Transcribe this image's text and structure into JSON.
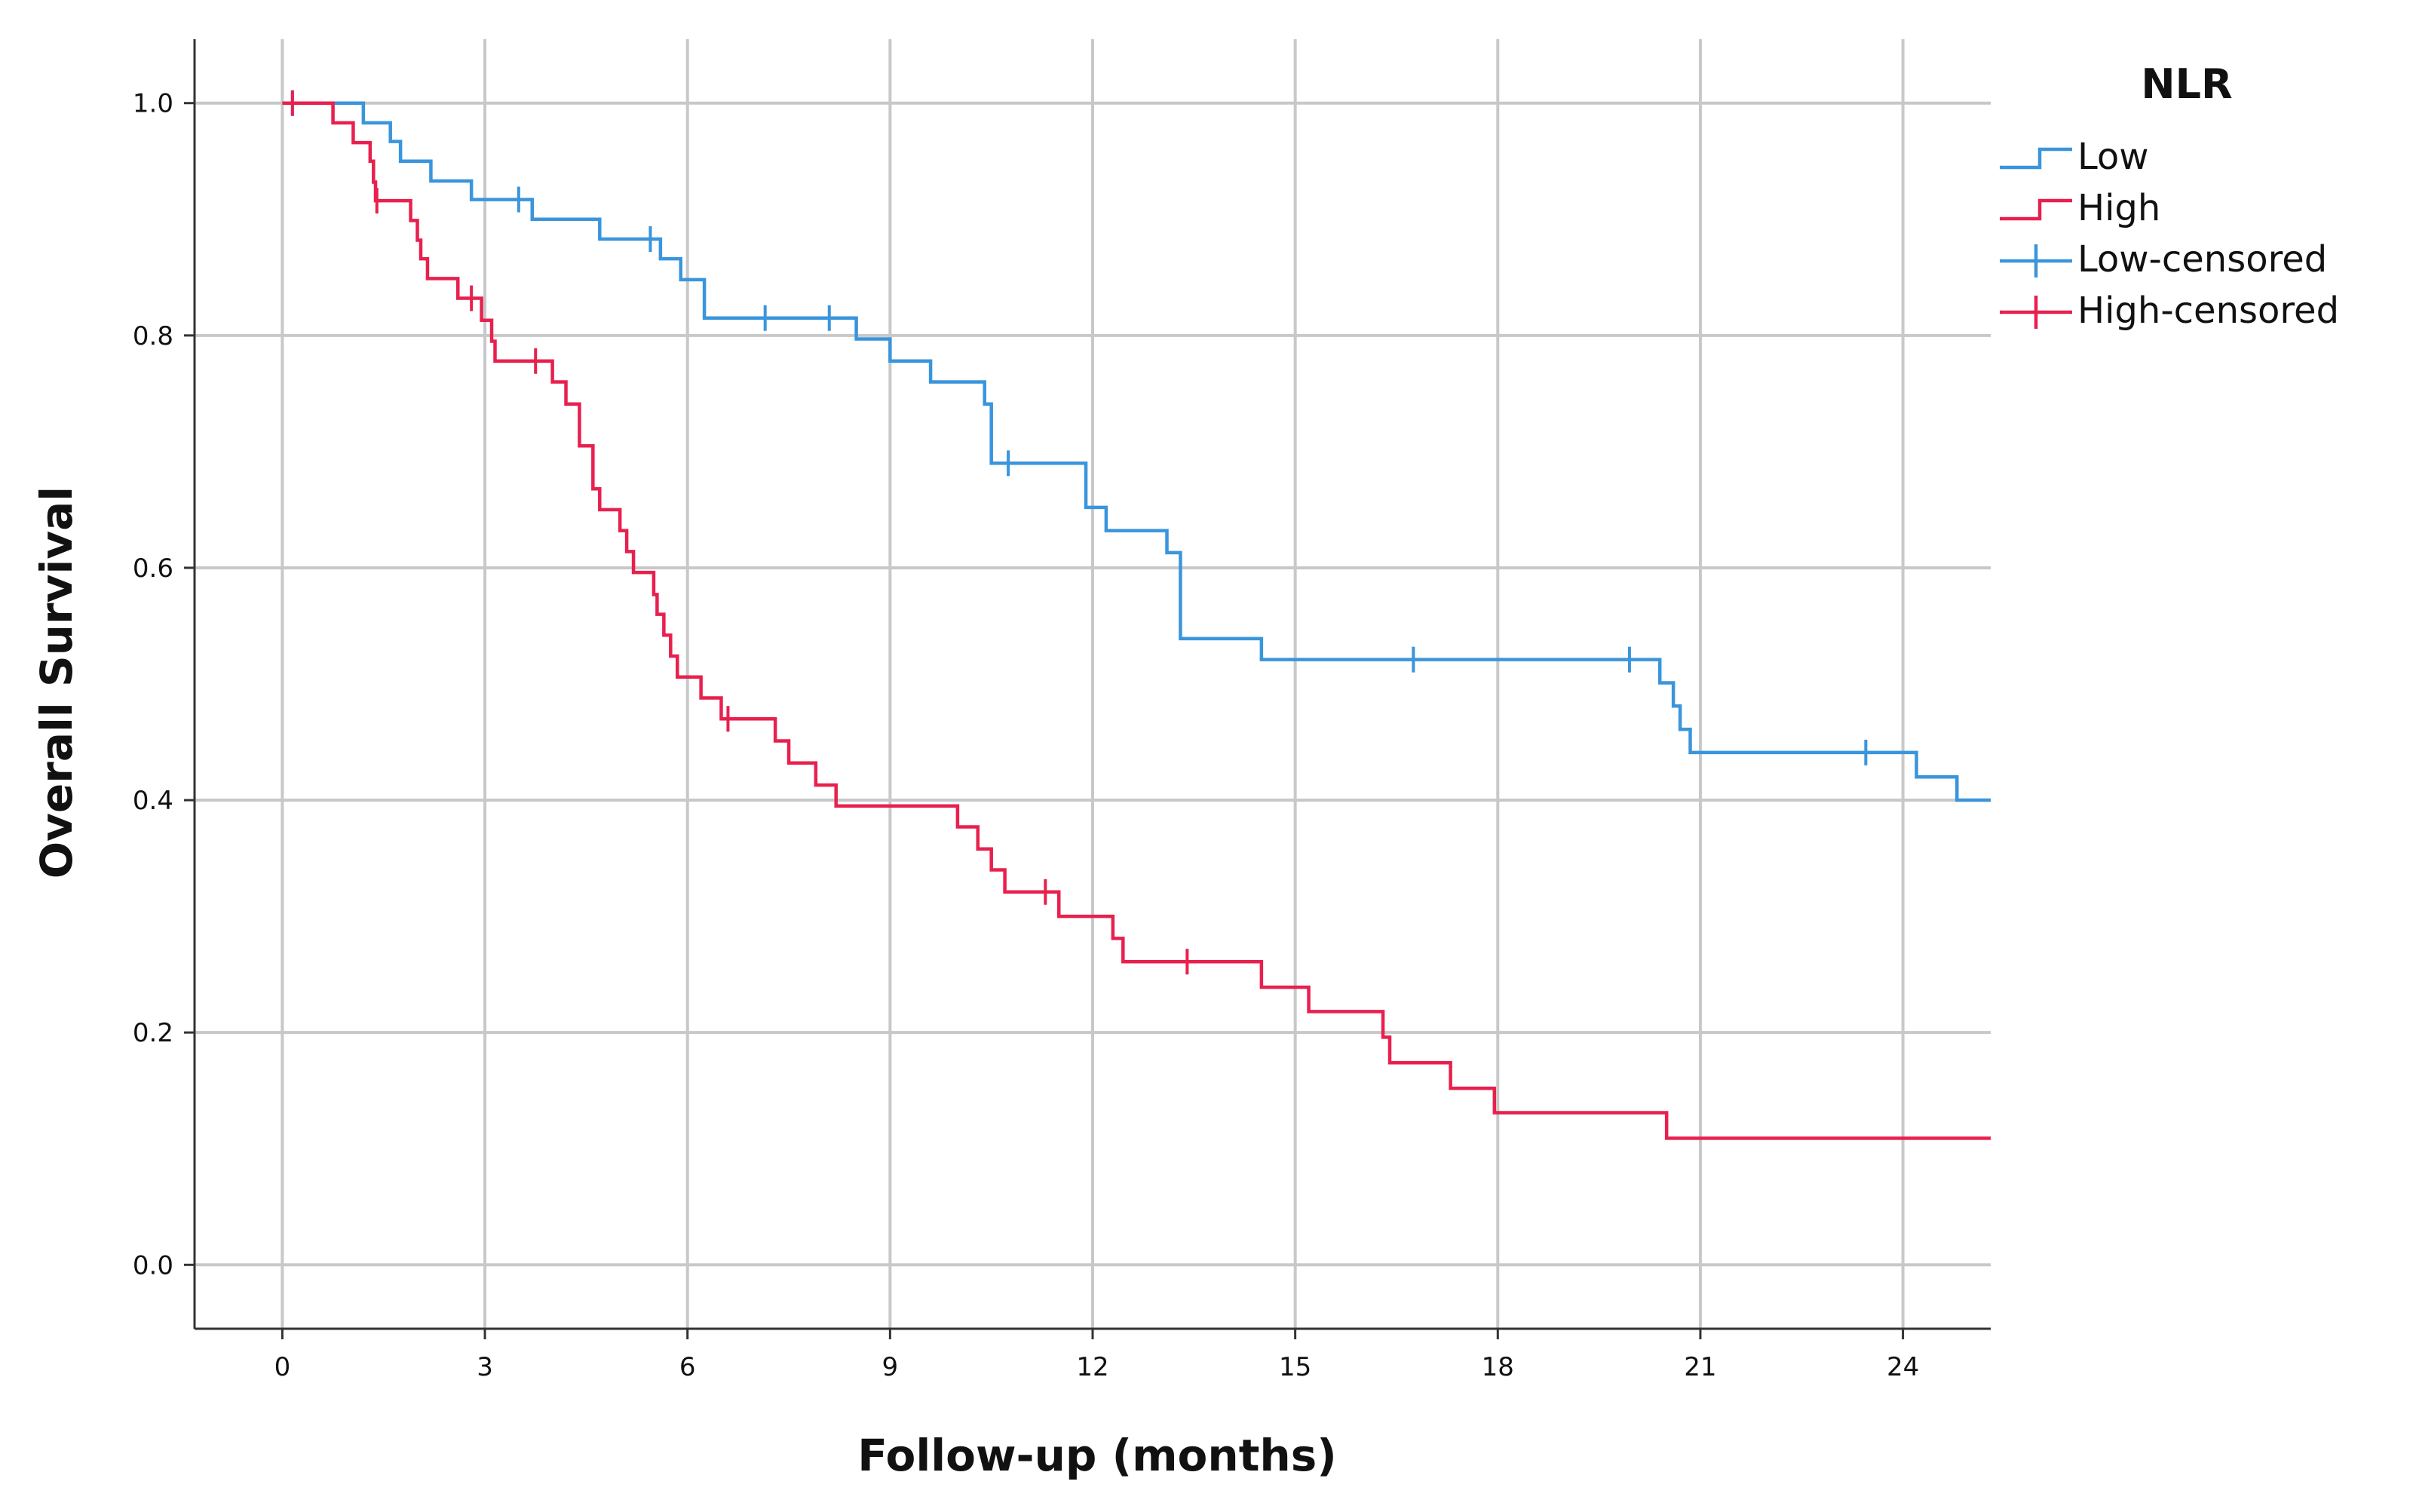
{
  "chart_data": {
    "type": "line",
    "step": true,
    "xlabel": "Follow-up (months)",
    "ylabel": "Overall Survival",
    "xlim": [
      -1.3,
      25.3
    ],
    "ylim": [
      -0.055,
      1.055
    ],
    "xticks": [
      0,
      3,
      6,
      9,
      12,
      15,
      18,
      21,
      24
    ],
    "yticks": [
      0.0,
      0.2,
      0.4,
      0.6,
      0.8,
      1.0
    ],
    "xtick_labels": [
      "0",
      "3",
      "6",
      "9",
      "12",
      "15",
      "18",
      "21",
      "24"
    ],
    "ytick_labels": [
      "0.0",
      "0.2",
      "0.4",
      "0.6",
      "0.8",
      "1.0"
    ],
    "grid": true,
    "legend": {
      "title": "NLR",
      "placement": "top-right outside",
      "entries": [
        {
          "label": "Low",
          "series": "Low",
          "kind": "line"
        },
        {
          "label": "High",
          "series": "High",
          "kind": "line"
        },
        {
          "label": "Low-censored",
          "series": "Low",
          "kind": "censor"
        },
        {
          "label": "High-censored",
          "series": "High",
          "kind": "censor"
        }
      ]
    },
    "series": [
      {
        "name": "Low",
        "color": "#3a95dc",
        "steps": [
          [
            0,
            1.0
          ],
          [
            1.2,
            0.983
          ],
          [
            1.6,
            0.967
          ],
          [
            1.75,
            0.95
          ],
          [
            2.2,
            0.933
          ],
          [
            2.8,
            0.917
          ],
          [
            3.7,
            0.9
          ],
          [
            4.7,
            0.883
          ],
          [
            5.6,
            0.866
          ],
          [
            5.9,
            0.848
          ],
          [
            6.25,
            0.815
          ],
          [
            8.5,
            0.797
          ],
          [
            9.0,
            0.778
          ],
          [
            9.6,
            0.76
          ],
          [
            10.4,
            0.741
          ],
          [
            10.5,
            0.69
          ],
          [
            11.9,
            0.652
          ],
          [
            12.2,
            0.632
          ],
          [
            13.1,
            0.613
          ],
          [
            13.3,
            0.539
          ],
          [
            14.5,
            0.521
          ],
          [
            20.4,
            0.501
          ],
          [
            20.6,
            0.481
          ],
          [
            20.7,
            0.461
          ],
          [
            20.85,
            0.441
          ],
          [
            24.2,
            0.42
          ],
          [
            24.8,
            0.4
          ],
          [
            25.3,
            0.4
          ]
        ],
        "censored": [
          0.15,
          3.5,
          5.45,
          7.15,
          8.1,
          10.75,
          16.75,
          19.95,
          23.45
        ]
      },
      {
        "name": "High",
        "color": "#e8204e",
        "steps": [
          [
            0,
            1.0
          ],
          [
            0.75,
            0.983
          ],
          [
            1.05,
            0.966
          ],
          [
            1.3,
            0.95
          ],
          [
            1.35,
            0.932
          ],
          [
            1.38,
            0.916
          ],
          [
            1.9,
            0.899
          ],
          [
            2.0,
            0.882
          ],
          [
            2.05,
            0.866
          ],
          [
            2.15,
            0.849
          ],
          [
            2.6,
            0.832
          ],
          [
            2.95,
            0.813
          ],
          [
            3.1,
            0.795
          ],
          [
            3.15,
            0.778
          ],
          [
            4.0,
            0.76
          ],
          [
            4.2,
            0.741
          ],
          [
            4.4,
            0.705
          ],
          [
            4.6,
            0.668
          ],
          [
            4.7,
            0.65
          ],
          [
            5.0,
            0.632
          ],
          [
            5.1,
            0.614
          ],
          [
            5.2,
            0.596
          ],
          [
            5.5,
            0.577
          ],
          [
            5.55,
            0.56
          ],
          [
            5.65,
            0.542
          ],
          [
            5.75,
            0.524
          ],
          [
            5.85,
            0.506
          ],
          [
            6.2,
            0.488
          ],
          [
            6.5,
            0.47
          ],
          [
            7.3,
            0.451
          ],
          [
            7.5,
            0.432
          ],
          [
            7.9,
            0.413
          ],
          [
            8.2,
            0.395
          ],
          [
            10.0,
            0.377
          ],
          [
            10.3,
            0.358
          ],
          [
            10.5,
            0.34
          ],
          [
            10.7,
            0.321
          ],
          [
            11.5,
            0.3
          ],
          [
            12.3,
            0.281
          ],
          [
            12.45,
            0.261
          ],
          [
            14.5,
            0.239
          ],
          [
            15.2,
            0.218
          ],
          [
            16.3,
            0.196
          ],
          [
            16.4,
            0.174
          ],
          [
            17.3,
            0.152
          ],
          [
            17.95,
            0.131
          ],
          [
            20.5,
            0.109
          ],
          [
            25.3,
            0.109
          ]
        ],
        "censored": [
          0.15,
          1.4,
          2.8,
          3.75,
          6.6,
          11.3,
          13.4
        ]
      }
    ]
  }
}
